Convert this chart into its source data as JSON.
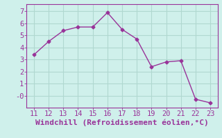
{
  "x": [
    11,
    12,
    13,
    14,
    15,
    16,
    17,
    18,
    19,
    20,
    21,
    22,
    23
  ],
  "y": [
    3.4,
    4.5,
    5.4,
    5.7,
    5.7,
    6.9,
    5.5,
    4.7,
    2.4,
    2.8,
    2.9,
    -0.3,
    -0.6
  ],
  "line_color": "#993399",
  "marker": "D",
  "marker_size": 2.5,
  "background_color": "#cff0eb",
  "grid_color": "#b0d8d0",
  "xlabel": "Windchill (Refroidissement éolien,°C)",
  "xlabel_color": "#993399",
  "tick_color": "#993399",
  "spine_color": "#993399",
  "xlim": [
    10.5,
    23.5
  ],
  "ylim": [
    -1.0,
    7.6
  ],
  "yticks": [
    0,
    1,
    2,
    3,
    4,
    5,
    6,
    7
  ],
  "ytick_labels": [
    "-0",
    "1",
    "2",
    "3",
    "4",
    "5",
    "6",
    "7"
  ],
  "xticks": [
    11,
    12,
    13,
    14,
    15,
    16,
    17,
    18,
    19,
    20,
    21,
    22,
    23
  ],
  "tick_fontsize": 7.5,
  "xlabel_fontsize": 8.0
}
